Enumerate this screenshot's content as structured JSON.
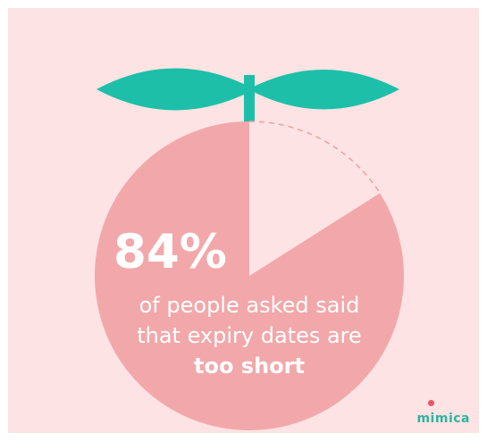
{
  "chart_data": {
    "type": "pie",
    "values": [
      84,
      16
    ],
    "colors": [
      "#f2a8aa",
      "#fde3e3"
    ],
    "value_label": "84%",
    "annotations": [
      "of people asked said",
      "that expiry dates are",
      "too short"
    ]
  },
  "caption": {
    "line1": "of people asked said",
    "line2": "that expiry dates are",
    "line3": "too short"
  },
  "brand": {
    "name": "mimica"
  },
  "colors": {
    "background": "#fde3e3",
    "slice": "#f2a8aa",
    "leaf": "#1dbfa9",
    "dash": "#ee9ea3",
    "text": "#ffffff",
    "brand_text": "#2fb3a2",
    "brand_dot": "#e9546b"
  }
}
